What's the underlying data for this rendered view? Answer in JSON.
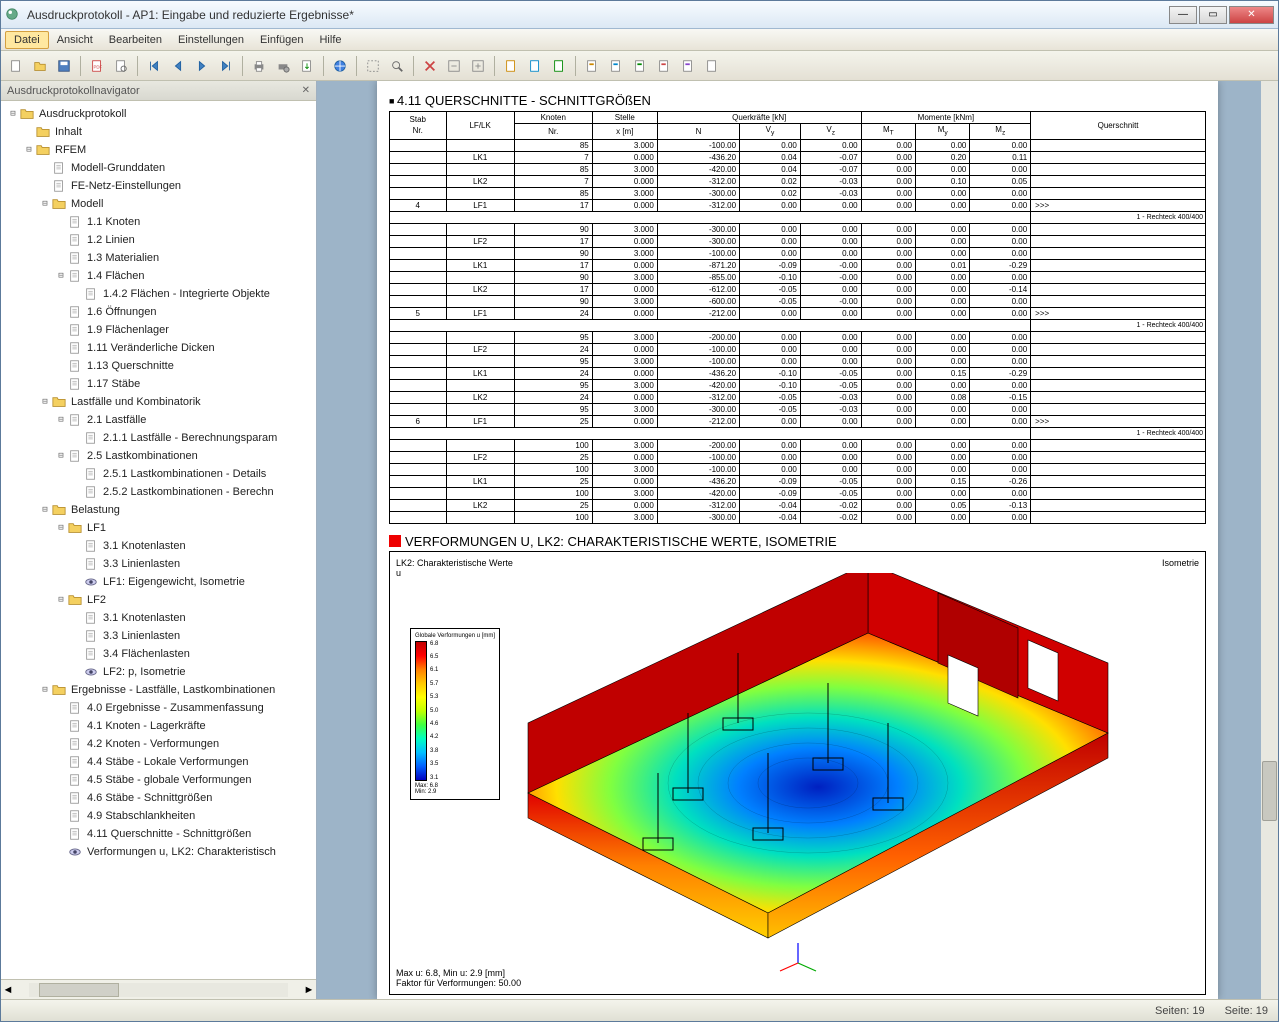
{
  "window": {
    "title": "Ausdruckprotokoll - AP1: Eingabe und reduzierte Ergebnisse*"
  },
  "menu": [
    "Datei",
    "Ansicht",
    "Bearbeiten",
    "Einstellungen",
    "Einfügen",
    "Hilfe"
  ],
  "sidebar": {
    "title": "Ausdruckprotokollnavigator",
    "tree": [
      {
        "d": 0,
        "t": "-",
        "i": "folder",
        "l": "Ausdruckprotokoll"
      },
      {
        "d": 1,
        "t": "",
        "i": "folder",
        "l": "Inhalt"
      },
      {
        "d": 1,
        "t": "-",
        "i": "folder",
        "l": "RFEM"
      },
      {
        "d": 2,
        "t": "",
        "i": "doc",
        "l": "Modell-Grunddaten"
      },
      {
        "d": 2,
        "t": "",
        "i": "doc",
        "l": "FE-Netz-Einstellungen"
      },
      {
        "d": 2,
        "t": "-",
        "i": "folder",
        "l": "Modell"
      },
      {
        "d": 3,
        "t": "",
        "i": "doc",
        "l": "1.1 Knoten"
      },
      {
        "d": 3,
        "t": "",
        "i": "doc",
        "l": "1.2 Linien"
      },
      {
        "d": 3,
        "t": "",
        "i": "doc",
        "l": "1.3 Materialien"
      },
      {
        "d": 3,
        "t": "-",
        "i": "doc",
        "l": "1.4 Flächen"
      },
      {
        "d": 4,
        "t": "",
        "i": "doc",
        "l": "1.4.2 Flächen - Integrierte Objekte"
      },
      {
        "d": 3,
        "t": "",
        "i": "doc",
        "l": "1.6 Öffnungen"
      },
      {
        "d": 3,
        "t": "",
        "i": "doc",
        "l": "1.9 Flächenlager"
      },
      {
        "d": 3,
        "t": "",
        "i": "doc",
        "l": "1.11 Veränderliche Dicken"
      },
      {
        "d": 3,
        "t": "",
        "i": "doc",
        "l": "1.13 Querschnitte"
      },
      {
        "d": 3,
        "t": "",
        "i": "doc",
        "l": "1.17 Stäbe"
      },
      {
        "d": 2,
        "t": "-",
        "i": "folder",
        "l": "Lastfälle und Kombinatorik"
      },
      {
        "d": 3,
        "t": "-",
        "i": "doc",
        "l": "2.1 Lastfälle"
      },
      {
        "d": 4,
        "t": "",
        "i": "doc",
        "l": "2.1.1 Lastfälle - Berechnungsparam"
      },
      {
        "d": 3,
        "t": "-",
        "i": "doc",
        "l": "2.5 Lastkombinationen"
      },
      {
        "d": 4,
        "t": "",
        "i": "doc",
        "l": "2.5.1 Lastkombinationen - Details"
      },
      {
        "d": 4,
        "t": "",
        "i": "doc",
        "l": "2.5.2 Lastkombinationen - Berechn"
      },
      {
        "d": 2,
        "t": "-",
        "i": "folder",
        "l": "Belastung"
      },
      {
        "d": 3,
        "t": "-",
        "i": "folder",
        "l": "LF1"
      },
      {
        "d": 4,
        "t": "",
        "i": "doc",
        "l": "3.1 Knotenlasten"
      },
      {
        "d": 4,
        "t": "",
        "i": "doc",
        "l": "3.3 Linienlasten"
      },
      {
        "d": 4,
        "t": "",
        "i": "eye",
        "l": "LF1: Eigengewicht, Isometrie"
      },
      {
        "d": 3,
        "t": "-",
        "i": "folder",
        "l": "LF2"
      },
      {
        "d": 4,
        "t": "",
        "i": "doc",
        "l": "3.1 Knotenlasten"
      },
      {
        "d": 4,
        "t": "",
        "i": "doc",
        "l": "3.3 Linienlasten"
      },
      {
        "d": 4,
        "t": "",
        "i": "doc",
        "l": "3.4 Flächenlasten"
      },
      {
        "d": 4,
        "t": "",
        "i": "eye",
        "l": "LF2: p, Isometrie"
      },
      {
        "d": 2,
        "t": "-",
        "i": "folder",
        "l": "Ergebnisse - Lastfälle, Lastkombinationen"
      },
      {
        "d": 3,
        "t": "",
        "i": "doc",
        "l": "4.0 Ergebnisse - Zusammenfassung"
      },
      {
        "d": 3,
        "t": "",
        "i": "doc",
        "l": "4.1 Knoten - Lagerkräfte"
      },
      {
        "d": 3,
        "t": "",
        "i": "doc",
        "l": "4.2 Knoten - Verformungen"
      },
      {
        "d": 3,
        "t": "",
        "i": "doc",
        "l": "4.4 Stäbe - Lokale Verformungen"
      },
      {
        "d": 3,
        "t": "",
        "i": "doc",
        "l": "4.5 Stäbe - globale Verformungen"
      },
      {
        "d": 3,
        "t": "",
        "i": "doc",
        "l": "4.6 Stäbe - Schnittgrößen"
      },
      {
        "d": 3,
        "t": "",
        "i": "doc",
        "l": "4.9 Stabschlankheiten"
      },
      {
        "d": 3,
        "t": "",
        "i": "doc",
        "l": "4.11 Querschnitte - Schnittgrößen"
      },
      {
        "d": 3,
        "t": "",
        "i": "eye",
        "l": "Verformungen u, LK2: Charakteristisch"
      }
    ]
  },
  "table": {
    "title": "4.11 QUERSCHNITTE - SCHNITTGRÖßEN",
    "group_headers": {
      "querkraft": "Querkräfte [kN]",
      "momente": "Momente [kNm]"
    },
    "headers": [
      "Stab Nr.",
      "LF/LK",
      "Knoten Nr.",
      "Stelle x [m]",
      "N",
      "Vy",
      "Vz",
      "MT",
      "My",
      "Mz",
      "Querschnitt"
    ],
    "rows": [
      [
        "",
        "",
        "85",
        "3.000",
        "-100.00",
        "0.00",
        "0.00",
        "0.00",
        "0.00",
        "0.00",
        ""
      ],
      [
        "",
        "LK1",
        "7",
        "0.000",
        "-436.20",
        "0.04",
        "-0.07",
        "0.00",
        "0.20",
        "0.11",
        ""
      ],
      [
        "",
        "",
        "85",
        "3.000",
        "-420.00",
        "0.04",
        "-0.07",
        "0.00",
        "0.00",
        "0.00",
        ""
      ],
      [
        "",
        "LK2",
        "7",
        "0.000",
        "-312.00",
        "0.02",
        "-0.03",
        "0.00",
        "0.10",
        "0.05",
        ""
      ],
      [
        "",
        "",
        "85",
        "3.000",
        "-300.00",
        "0.02",
        "-0.03",
        "0.00",
        "0.00",
        "0.00",
        ""
      ],
      [
        "4",
        "LF1",
        "17",
        "0.000",
        "-312.00",
        "0.00",
        "0.00",
        "0.00",
        "0.00",
        "0.00",
        ">>>"
      ],
      [
        "",
        "",
        "",
        "",
        "",
        "",
        "",
        "",
        "",
        "",
        "1 - Rechteck 400/400"
      ],
      [
        "",
        "",
        "90",
        "3.000",
        "-300.00",
        "0.00",
        "0.00",
        "0.00",
        "0.00",
        "0.00",
        ""
      ],
      [
        "",
        "LF2",
        "17",
        "0.000",
        "-300.00",
        "0.00",
        "0.00",
        "0.00",
        "0.00",
        "0.00",
        ""
      ],
      [
        "",
        "",
        "90",
        "3.000",
        "-100.00",
        "0.00",
        "0.00",
        "0.00",
        "0.00",
        "0.00",
        ""
      ],
      [
        "",
        "LK1",
        "17",
        "0.000",
        "-871.20",
        "-0.09",
        "-0.00",
        "0.00",
        "0.01",
        "-0.29",
        ""
      ],
      [
        "",
        "",
        "90",
        "3.000",
        "-855.00",
        "-0.10",
        "-0.00",
        "0.00",
        "0.00",
        "0.00",
        ""
      ],
      [
        "",
        "LK2",
        "17",
        "0.000",
        "-612.00",
        "-0.05",
        "0.00",
        "0.00",
        "0.00",
        "-0.14",
        ""
      ],
      [
        "",
        "",
        "90",
        "3.000",
        "-600.00",
        "-0.05",
        "-0.00",
        "0.00",
        "0.00",
        "0.00",
        ""
      ],
      [
        "5",
        "LF1",
        "24",
        "0.000",
        "-212.00",
        "0.00",
        "0.00",
        "0.00",
        "0.00",
        "0.00",
        ">>>"
      ],
      [
        "",
        "",
        "",
        "",
        "",
        "",
        "",
        "",
        "",
        "",
        "1 - Rechteck 400/400"
      ],
      [
        "",
        "",
        "95",
        "3.000",
        "-200.00",
        "0.00",
        "0.00",
        "0.00",
        "0.00",
        "0.00",
        ""
      ],
      [
        "",
        "LF2",
        "24",
        "0.000",
        "-100.00",
        "0.00",
        "0.00",
        "0.00",
        "0.00",
        "0.00",
        ""
      ],
      [
        "",
        "",
        "95",
        "3.000",
        "-100.00",
        "0.00",
        "0.00",
        "0.00",
        "0.00",
        "0.00",
        ""
      ],
      [
        "",
        "LK1",
        "24",
        "0.000",
        "-436.20",
        "-0.10",
        "-0.05",
        "0.00",
        "0.15",
        "-0.29",
        ""
      ],
      [
        "",
        "",
        "95",
        "3.000",
        "-420.00",
        "-0.10",
        "-0.05",
        "0.00",
        "0.00",
        "0.00",
        ""
      ],
      [
        "",
        "LK2",
        "24",
        "0.000",
        "-312.00",
        "-0.05",
        "-0.03",
        "0.00",
        "0.08",
        "-0.15",
        ""
      ],
      [
        "",
        "",
        "95",
        "3.000",
        "-300.00",
        "-0.05",
        "-0.03",
        "0.00",
        "0.00",
        "0.00",
        ""
      ],
      [
        "6",
        "LF1",
        "25",
        "0.000",
        "-212.00",
        "0.00",
        "0.00",
        "0.00",
        "0.00",
        "0.00",
        ">>>"
      ],
      [
        "",
        "",
        "",
        "",
        "",
        "",
        "",
        "",
        "",
        "",
        "1 - Rechteck 400/400"
      ],
      [
        "",
        "",
        "100",
        "3.000",
        "-200.00",
        "0.00",
        "0.00",
        "0.00",
        "0.00",
        "0.00",
        ""
      ],
      [
        "",
        "LF2",
        "25",
        "0.000",
        "-100.00",
        "0.00",
        "0.00",
        "0.00",
        "0.00",
        "0.00",
        ""
      ],
      [
        "",
        "",
        "100",
        "3.000",
        "-100.00",
        "0.00",
        "0.00",
        "0.00",
        "0.00",
        "0.00",
        ""
      ],
      [
        "",
        "LK1",
        "25",
        "0.000",
        "-436.20",
        "-0.09",
        "-0.05",
        "0.00",
        "0.15",
        "-0.26",
        ""
      ],
      [
        "",
        "",
        "100",
        "3.000",
        "-420.00",
        "-0.09",
        "-0.05",
        "0.00",
        "0.00",
        "0.00",
        ""
      ],
      [
        "",
        "LK2",
        "25",
        "0.000",
        "-312.00",
        "-0.04",
        "-0.02",
        "0.00",
        "0.05",
        "-0.13",
        ""
      ],
      [
        "",
        "",
        "100",
        "3.000",
        "-300.00",
        "-0.04",
        "-0.02",
        "0.00",
        "0.00",
        "0.00",
        ""
      ]
    ]
  },
  "deform": {
    "title": "VERFORMUNGEN U, LK2: CHARAKTERISTISCHE WERTE, ISOMETRIE",
    "subtitle_left": "LK2: Charakteristische Werte",
    "subtitle_left2": "u",
    "subtitle_right": "Isometrie",
    "legend_title": "Globale Verformungen u [mm]",
    "legend_values": [
      "6.8",
      "6.5",
      "6.1",
      "5.7",
      "5.3",
      "5.0",
      "4.6",
      "4.2",
      "3.8",
      "3.5",
      "3.1"
    ],
    "legend_max": "6.8",
    "legend_min": "2.9",
    "footer1": "Max u: 6.8, Min u: 2.9 [mm]",
    "footer2": "Faktor für Verformungen: 50.00",
    "gradient": [
      "#c00000",
      "#ff0000",
      "#ff8000",
      "#ffc800",
      "#ffff00",
      "#c0ff00",
      "#40ff40",
      "#00ffc0",
      "#00c0ff",
      "#0060ff",
      "#0000c0"
    ]
  },
  "status": {
    "pages": "Seiten: 19",
    "page": "Seite: 19"
  }
}
